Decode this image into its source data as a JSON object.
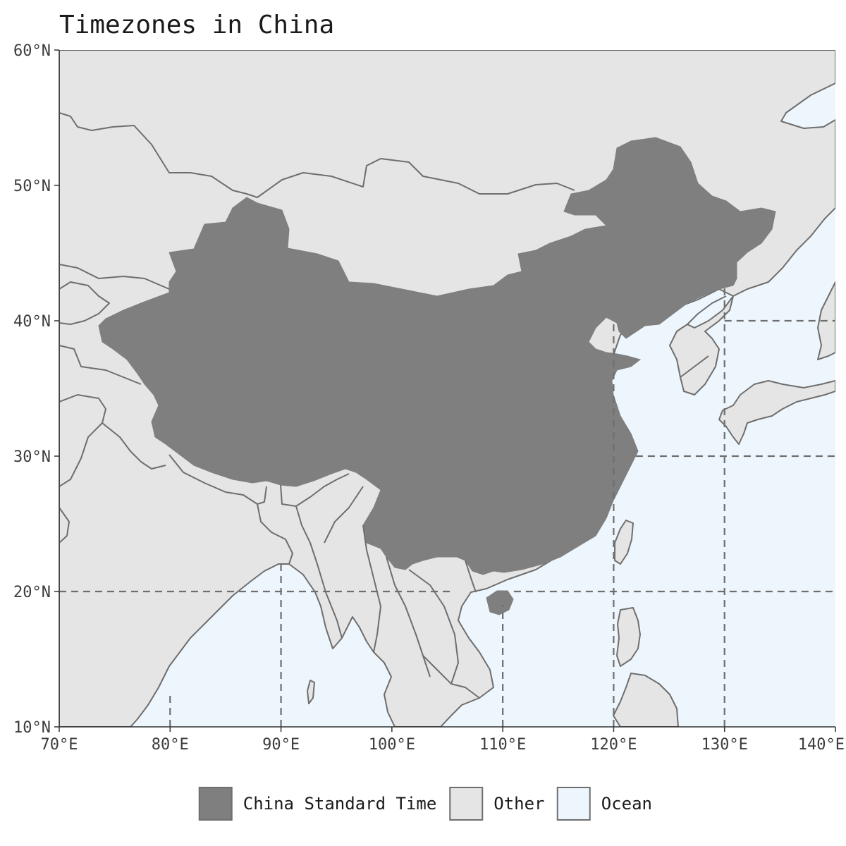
{
  "title": "Timezones in China",
  "axes": {
    "lat_ticks": [
      {
        "value": 60,
        "label": "60°N"
      },
      {
        "value": 50,
        "label": "50°N"
      },
      {
        "value": 40,
        "label": "40°N"
      },
      {
        "value": 30,
        "label": "30°N"
      },
      {
        "value": 20,
        "label": "20°N"
      },
      {
        "value": 10,
        "label": "10°N"
      }
    ],
    "lon_ticks": [
      {
        "value": 70,
        "label": "70°E"
      },
      {
        "value": 80,
        "label": "80°E"
      },
      {
        "value": 90,
        "label": "90°E"
      },
      {
        "value": 100,
        "label": "100°E"
      },
      {
        "value": 110,
        "label": "110°E"
      },
      {
        "value": 120,
        "label": "120°E"
      },
      {
        "value": 130,
        "label": "130°E"
      },
      {
        "value": 140,
        "label": "140°E"
      }
    ],
    "lon_range": [
      70,
      140
    ],
    "lat_range": [
      10,
      60
    ]
  },
  "timezone_boundaries": [
    {
      "type": "lat",
      "value": 40,
      "lon_from": 130,
      "lon_to": 140
    },
    {
      "type": "lat",
      "value": 30,
      "lon_from": 122,
      "lon_to": 140
    },
    {
      "type": "lat",
      "value": 20,
      "lon_from": 70,
      "lon_to": 105.5
    },
    {
      "type": "lat",
      "value": 20,
      "lon_from": 111,
      "lon_to": 140
    },
    {
      "type": "lon",
      "value": 80,
      "lat_from": 10,
      "lat_to": 12.5
    },
    {
      "type": "lon",
      "value": 90,
      "lat_from": 10,
      "lat_to": 22
    },
    {
      "type": "lon",
      "value": 110,
      "lat_from": 10,
      "lat_to": 19
    },
    {
      "type": "lon",
      "value": 120,
      "lat_from": 10,
      "lat_to": 40
    },
    {
      "type": "lon",
      "value": 130,
      "lat_from": 10,
      "lat_to": 42.5
    }
  ],
  "legend": [
    {
      "label": "China Standard Time",
      "fill": "#7f7f7f"
    },
    {
      "label": "Other",
      "fill": "#e5e5e5"
    },
    {
      "label": "Ocean",
      "fill": "#eef6fd"
    }
  ],
  "colors": {
    "china": "#7f7f7f",
    "other_land": "#e5e5e5",
    "ocean": "#eef6fd",
    "border": "#6e6e6e",
    "timezone_line": "#6e6e6e"
  }
}
